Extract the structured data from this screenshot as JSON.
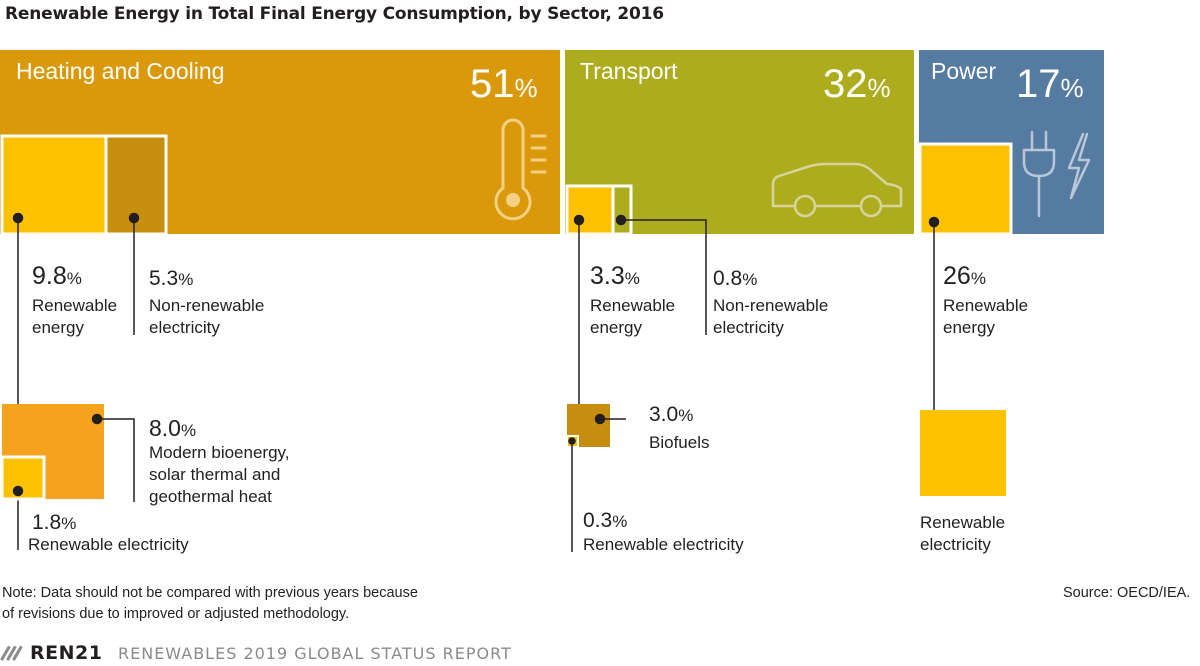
{
  "title": "Renewable Energy in Total Final Energy Consumption, by Sector, 2016",
  "colors": {
    "heating": "#d9990a",
    "transport": "#adac1e",
    "power": "#557ba0",
    "renewable": "#fcc100",
    "nonrenewable": "#c6900e",
    "heat_renewable_mix": "#f5a31f",
    "biofuels": "#c68e10"
  },
  "chart_data": {
    "type": "treemap",
    "title": "Renewable Energy in Total Final Energy Consumption, by Sector, 2016",
    "unit": "%",
    "sectors": [
      {
        "name": "Heating and Cooling",
        "share": 51,
        "icon": "thermometer-icon",
        "breakdown": [
          {
            "name": "Renewable energy",
            "value": 9.8,
            "components": [
              {
                "name": "Modern bioenergy, solar thermal and geothermal heat",
                "value": 8.0
              },
              {
                "name": "Renewable electricity",
                "value": 1.8
              }
            ]
          },
          {
            "name": "Non-renewable electricity",
            "value": 5.3
          }
        ]
      },
      {
        "name": "Transport",
        "share": 32,
        "icon": "car-icon",
        "breakdown": [
          {
            "name": "Renewable energy",
            "value": 3.3,
            "components": [
              {
                "name": "Biofuels",
                "value": 3.0
              },
              {
                "name": "Renewable electricity",
                "value": 0.3
              }
            ]
          },
          {
            "name": "Non-renewable electricity",
            "value": 0.8
          }
        ]
      },
      {
        "name": "Power",
        "share": 17,
        "icon": "plug-lightning-icon",
        "breakdown": [
          {
            "name": "Renewable energy",
            "value": 26,
            "components": [
              {
                "name": "Renewable electricity",
                "value": null
              }
            ]
          }
        ]
      }
    ]
  },
  "sectors_text": {
    "heating": {
      "name": "Heating and Cooling",
      "pct": "51",
      "unit": "%"
    },
    "transport": {
      "name": "Transport",
      "pct": "32",
      "unit": "%"
    },
    "power": {
      "name": "Power",
      "pct": "17",
      "unit": "%"
    }
  },
  "labels": {
    "heat_ren_val": "9.8",
    "heat_ren_lbl": "Renewable\nenergy",
    "heat_nonren_val": "5.3",
    "heat_nonren_lbl": "Non-renewable\nelectricity",
    "heat_mix_val": "8.0",
    "heat_mix_lbl": "Modern bioenergy,\nsolar thermal and\ngeothermal heat",
    "heat_relec_val": "1.8",
    "heat_relec_lbl": "Renewable electricity",
    "tr_ren_val": "3.3",
    "tr_ren_lbl": "Renewable\nenergy",
    "tr_nonren_val": "0.8",
    "tr_nonren_lbl": "Non-renewable\nelectricity",
    "tr_bio_val": "3.0",
    "tr_bio_lbl": "Biofuels",
    "tr_relec_val": "0.3",
    "tr_relec_lbl": "Renewable electricity",
    "pw_ren_val": "26",
    "pw_ren_lbl": "Renewable\nenergy",
    "pw_relec_lbl": "Renewable\nelectricity",
    "unit": "%"
  },
  "note": "Note: Data should not be compared with previous years because\nof revisions due to improved or adjusted methodology.",
  "source": "Source: OECD/IEA.",
  "footer": {
    "logo": "REN21",
    "report": "RENEWABLES 2019 GLOBAL STATUS REPORT"
  }
}
